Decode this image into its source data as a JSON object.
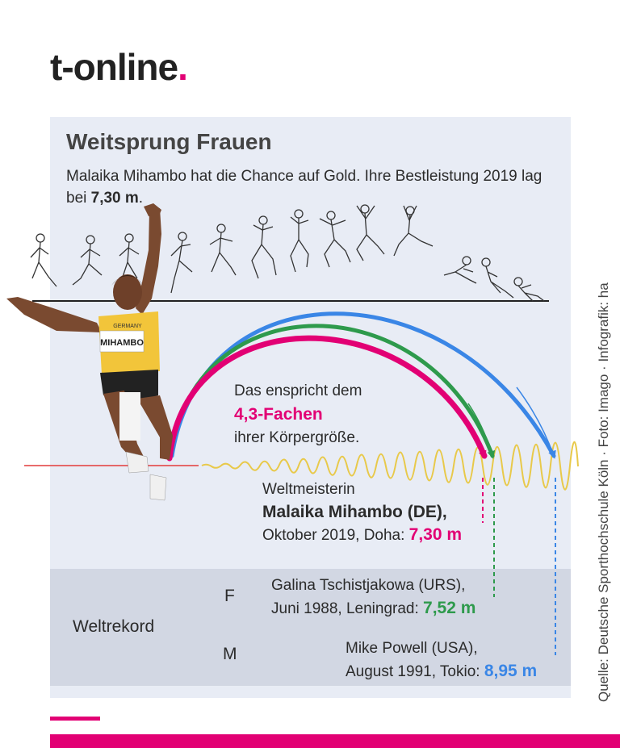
{
  "brand": {
    "name": "t-online",
    "dot": ".",
    "accent": "#e20074"
  },
  "header": {
    "title": "Weitsprung Frauen",
    "subtitle_text": "Malaika Mihambo hat die Chance auf Gold. Ihre Bestleistung 2019 lag bei ",
    "subtitle_value": "7,30 m",
    "subtitle_end": "."
  },
  "athlete": {
    "bib": "MIHAMBO",
    "shirt": "GERMANY"
  },
  "comparison": {
    "line1": "Das enspricht dem",
    "highlight": "4,3-Fachen",
    "line3": "ihrer Körpergröße."
  },
  "world_champion": {
    "label": "Weltmeisterin",
    "name": "Malaika Mihambo (DE),",
    "detail": "Oktober 2019, Doha: ",
    "value": "7,30 m",
    "color": "#e20074"
  },
  "world_record": {
    "label": "Weltrekord",
    "women": {
      "marker": "F",
      "name": "Galina Tschistjakowa (URS),",
      "detail": "Juni 1988, Leningrad: ",
      "value": "7,52 m",
      "color": "#2e9a4c"
    },
    "men": {
      "marker": "M",
      "name": "Mike Powell (USA),",
      "detail": "August 1991, Tokio: ",
      "value": "8,95 m",
      "color": "#3a86e6"
    }
  },
  "source": "Quelle: Deutsche Sporthochschule Köln · Foto: Imago · Infografik: ha",
  "icons": [
    "athlete-photo",
    "jump-sequence-illustration"
  ]
}
